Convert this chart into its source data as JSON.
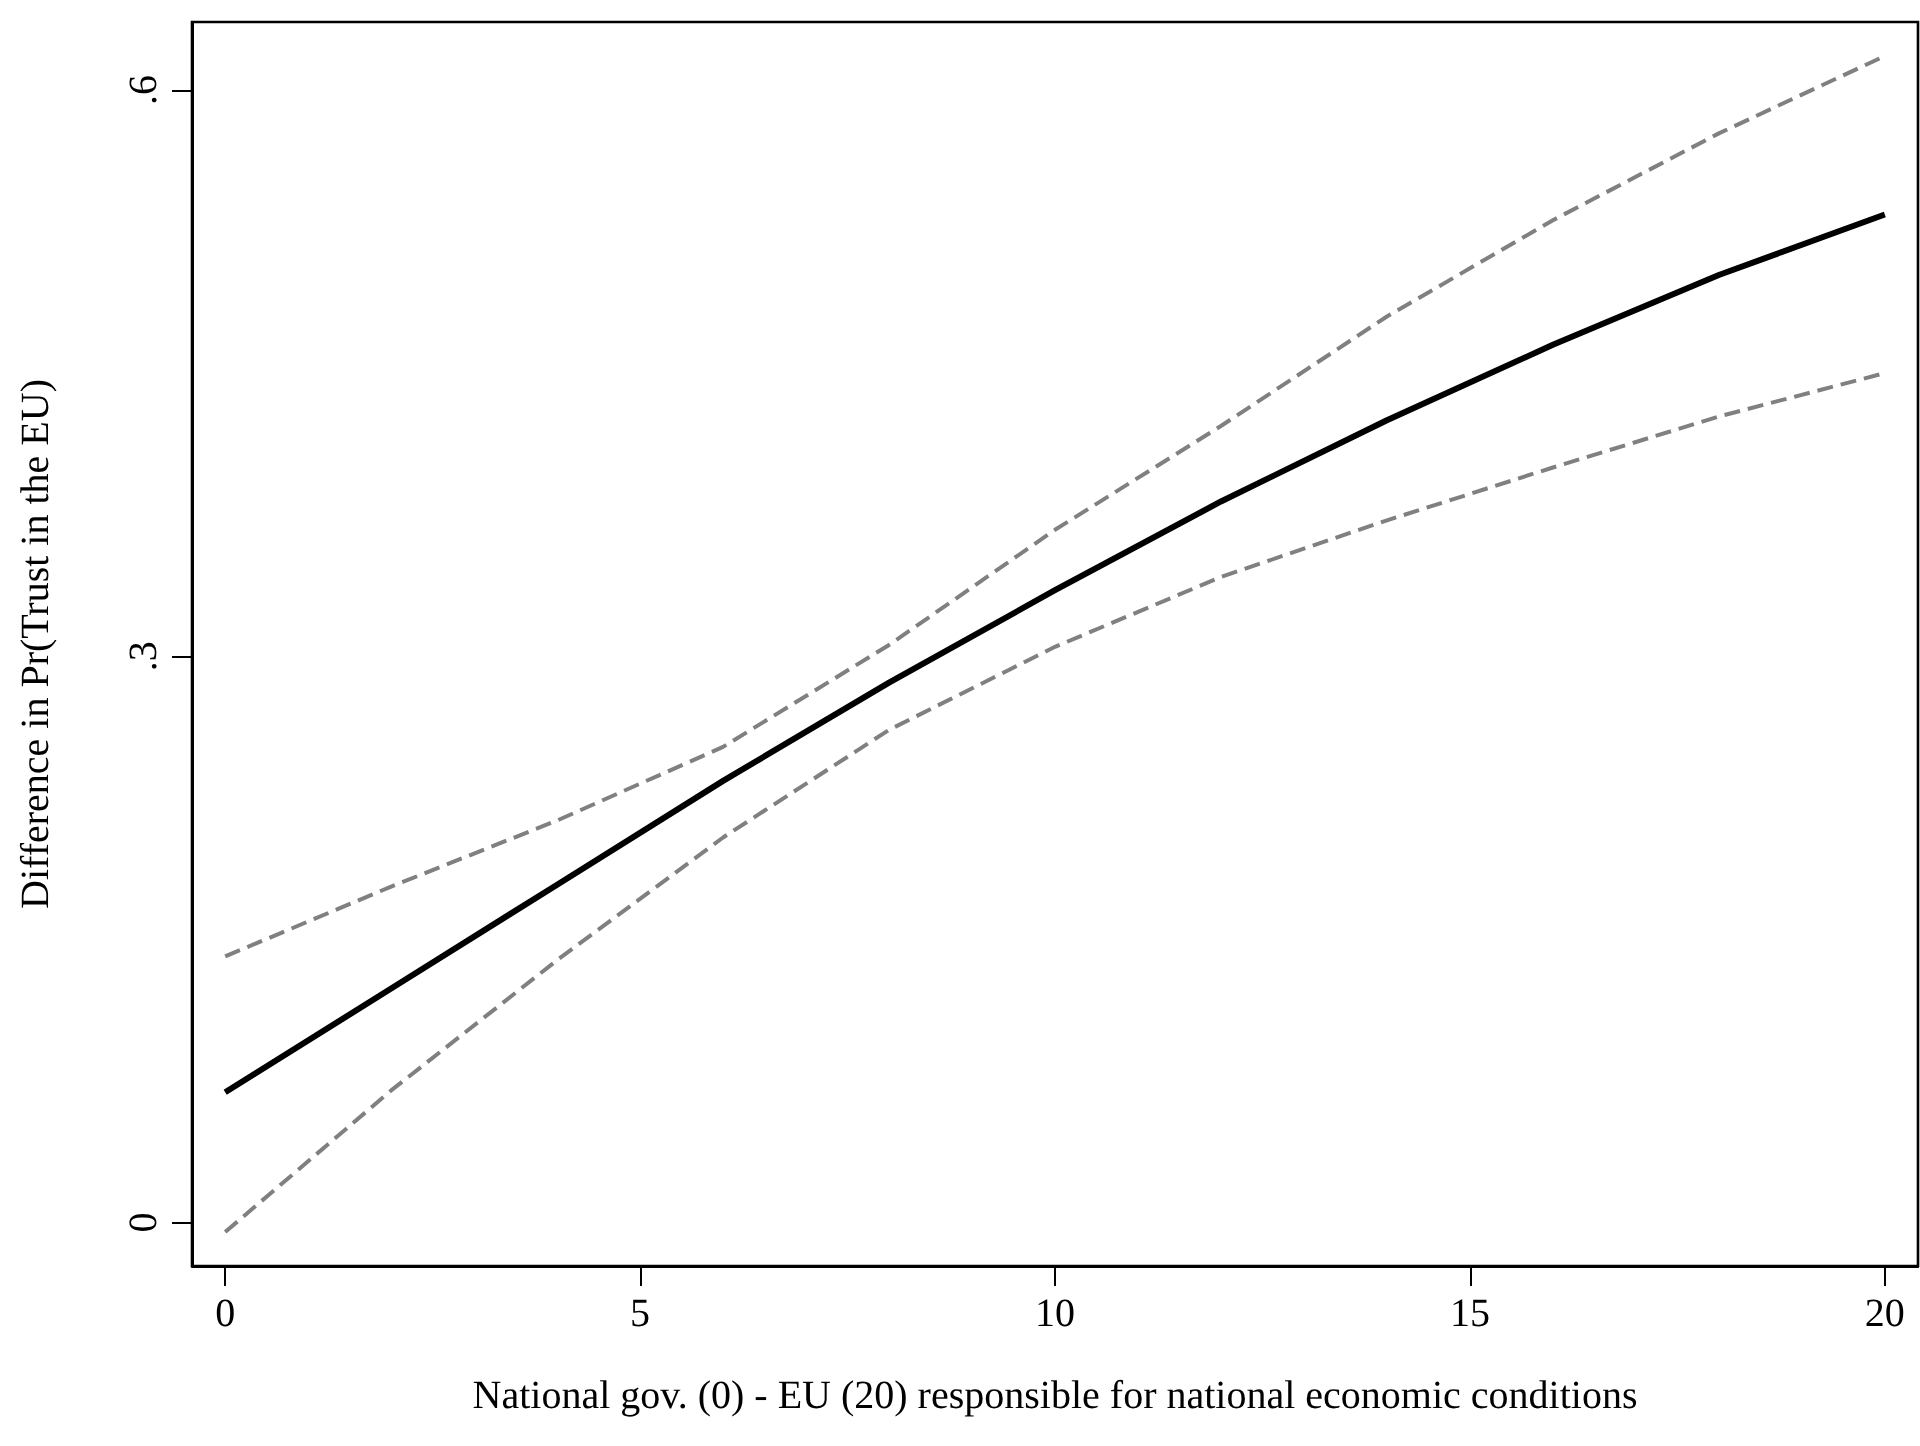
{
  "chart_data": {
    "type": "line",
    "xlabel": "National gov. (0) - EU (20) responsible for national economic conditions",
    "ylabel": "Difference in Pr(Trust in the EU)",
    "x": [
      0,
      2,
      4,
      6,
      8,
      10,
      12,
      14,
      16,
      18,
      20
    ],
    "series": [
      {
        "color": "#000000",
        "line_style": "solid",
        "values": [
          0.069,
          0.124,
          0.179,
          0.234,
          0.286,
          0.335,
          0.382,
          0.425,
          0.465,
          0.502,
          0.534
        ]
      },
      {
        "color": "#808080",
        "line_style": "dashed",
        "values": [
          0.141,
          0.178,
          0.213,
          0.252,
          0.306,
          0.367,
          0.422,
          0.48,
          0.531,
          0.577,
          0.618
        ]
      },
      {
        "color": "#808080",
        "line_style": "dashed",
        "values": [
          -0.005,
          0.07,
          0.139,
          0.204,
          0.261,
          0.305,
          0.342,
          0.372,
          0.4,
          0.427,
          0.45
        ]
      }
    ],
    "xlim": [
      -0.4,
      20.4
    ],
    "xticks": [
      0,
      5,
      10,
      15,
      20
    ],
    "ylim": [
      -0.023,
      0.636
    ],
    "yticks": [
      0,
      {
        "value": 0.3,
        "label": ".3"
      },
      {
        "value": 0.6,
        "label": ".6"
      }
    ],
    "grid": false,
    "marker": "none"
  }
}
